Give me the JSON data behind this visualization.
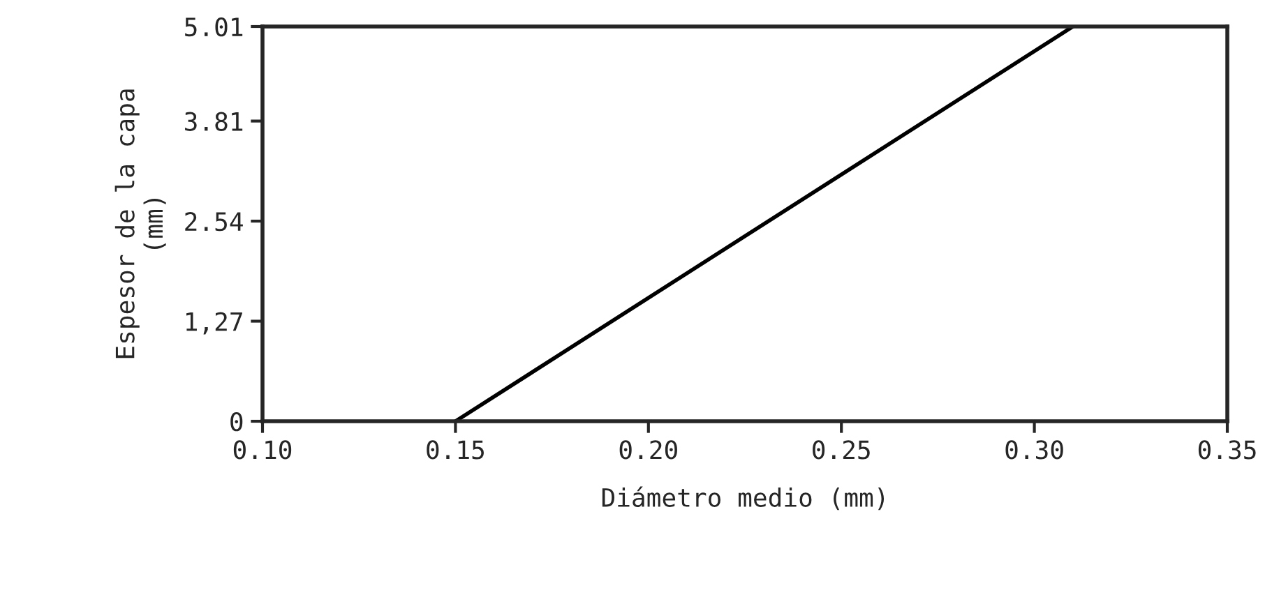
{
  "chart_data": {
    "type": "line",
    "xlabel": "Diámetro medio (mm)",
    "ylabel": "Espesor de la capa\n(mm)",
    "x": [
      0.15,
      0.31
    ],
    "series": [
      {
        "color": "#000000",
        "values": [
          0,
          5.01
        ]
      }
    ],
    "xlim": [
      0.1,
      0.35
    ],
    "xticks": [
      {
        "value": 0.1,
        "label": "0.10"
      },
      0.15,
      {
        "value": 0.2,
        "label": "0.20"
      },
      0.25,
      {
        "value": 0.3,
        "label": "0.30"
      },
      0.35
    ],
    "ylim": [
      0,
      5.01
    ],
    "yticks": [
      0,
      {
        "value": 1.27,
        "label": "1,27"
      },
      2.54,
      3.81,
      5.01
    ],
    "grid": false,
    "marker": "none",
    "line_style": "solid"
  }
}
